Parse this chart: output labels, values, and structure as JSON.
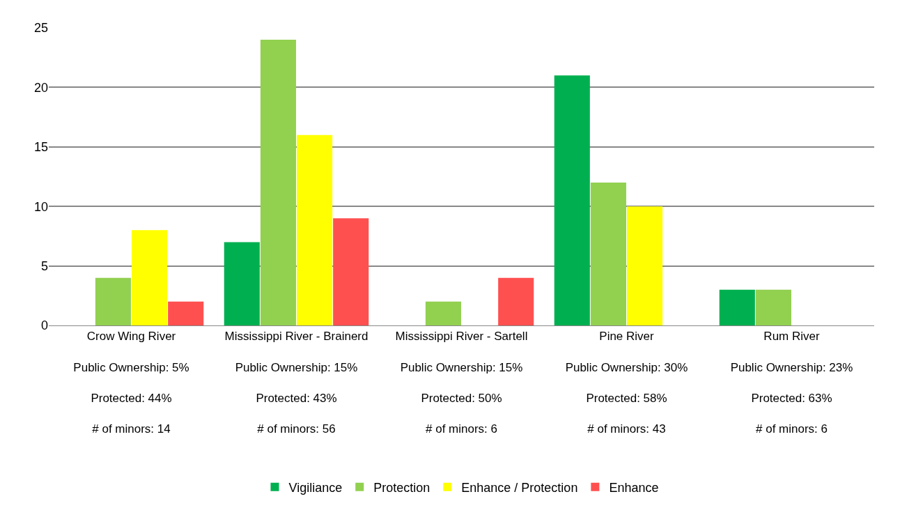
{
  "chart_data": {
    "type": "bar",
    "categories": [
      "Crow Wing River\nPublic Ownership: 5%\nProtected: 44%\n# of minors: 14",
      "Mississippi River - Brainerd\nPublic Ownership: 15%\nProtected: 43%\n# of minors: 56",
      "Mississippi River - Sartell\nPublic Ownership: 15%\nProtected: 50%\n# of minors: 6",
      "Pine River\nPublic Ownership: 30%\nProtected: 58%\n# of minors: 43",
      "Rum River\nPublic Ownership: 23%\nProtected: 63%\n# of minors: 6"
    ],
    "series": [
      {
        "name": "Vigiliance",
        "color": "#00b050",
        "values": [
          0,
          7,
          0,
          21,
          3
        ]
      },
      {
        "name": "Protection",
        "color": "#92d050",
        "values": [
          4,
          24,
          2,
          12,
          3
        ]
      },
      {
        "name": "Enhance / Protection",
        "color": "#ffff00",
        "values": [
          8,
          16,
          0,
          10,
          0
        ]
      },
      {
        "name": "Enhance",
        "color": "#ff5050",
        "values": [
          2,
          9,
          4,
          0,
          0
        ]
      }
    ],
    "ylim": [
      0,
      25
    ],
    "yticks": [
      0,
      5,
      10,
      15,
      20,
      25
    ],
    "grid": "y",
    "legend": "bottom"
  }
}
